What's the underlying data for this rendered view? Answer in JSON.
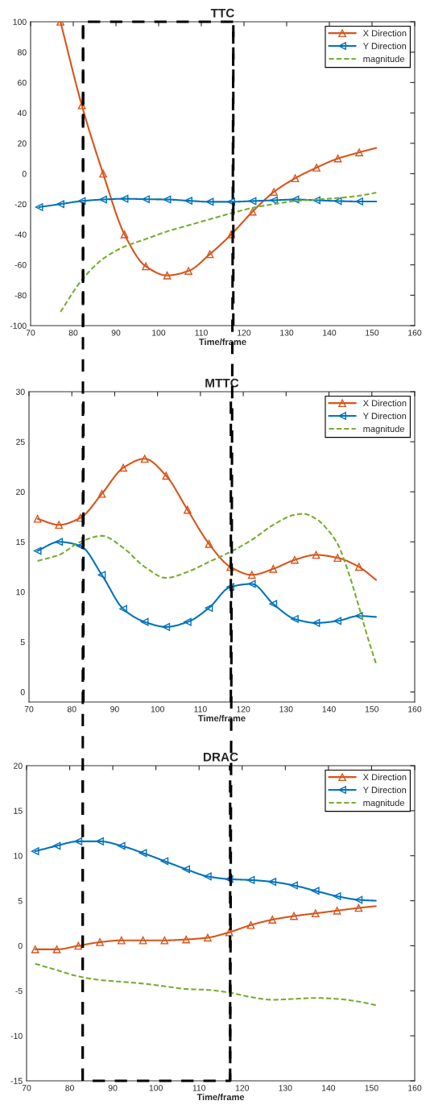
{
  "chart_data": [
    {
      "type": "line",
      "title": "TTC",
      "xlabel": "Time/frame",
      "x": [
        72,
        77,
        82,
        87,
        92,
        97,
        102,
        107,
        112,
        117,
        122,
        127,
        132,
        137,
        142,
        147,
        151
      ],
      "series": [
        {
          "name": "X Direction",
          "color": "#d95319",
          "marker": "triangle",
          "line_style": "solid",
          "values": [
            null,
            100,
            45,
            0,
            -40,
            -61,
            -67,
            -64,
            -53,
            -40,
            -25,
            -12,
            -3,
            4,
            10,
            14,
            17
          ]
        },
        {
          "name": "Y Direction",
          "color": "#0072bd",
          "marker": "triangle-left",
          "line_style": "solid",
          "values": [
            -22,
            -20,
            -18,
            -17,
            -16.5,
            -16.8,
            -17,
            -17.8,
            -18.5,
            -18.5,
            -18,
            -17.5,
            -17,
            -17.5,
            -18,
            -18.3,
            -18.3
          ]
        },
        {
          "name": "magnitude",
          "color": "#77ac30",
          "marker": "none",
          "line_style": "dashed",
          "values": [
            null,
            -91,
            -70,
            -56,
            -48,
            -43,
            -38,
            -34,
            -30,
            -26,
            -22.5,
            -20,
            -18,
            -17,
            -16,
            -14.5,
            -12.5
          ]
        }
      ],
      "xlim": [
        70,
        160
      ],
      "xticks": [
        70,
        80,
        90,
        100,
        110,
        120,
        130,
        140,
        150,
        160
      ],
      "ylim": [
        -100,
        100
      ],
      "yticks": [
        -100,
        -80,
        -60,
        -40,
        -20,
        0,
        20,
        40,
        60,
        80,
        100
      ],
      "ref_lines": [
        {
          "axis": "x",
          "value": 82.3,
          "color": "#000000",
          "line_style": "dashed"
        },
        {
          "axis": "x",
          "value": 117.5,
          "color": "#000000",
          "line_style": "dashed"
        }
      ],
      "legend": "top right",
      "grid": false
    },
    {
      "type": "line",
      "title": "MTTC",
      "xlabel": "Time/frame",
      "x": [
        72,
        77,
        82,
        87,
        92,
        97,
        102,
        107,
        112,
        117,
        122,
        127,
        132,
        137,
        142,
        147,
        151
      ],
      "series": [
        {
          "name": "X Direction",
          "color": "#d95319",
          "marker": "triangle",
          "line_style": "solid",
          "values": [
            17.3,
            16.7,
            17.4,
            19.8,
            22.4,
            23.3,
            21.6,
            18.2,
            14.8,
            12.5,
            11.7,
            12.3,
            13.2,
            13.7,
            13.4,
            12.5,
            11.2
          ]
        },
        {
          "name": "Y Direction",
          "color": "#0072bd",
          "marker": "triangle-left",
          "line_style": "solid",
          "values": [
            14.1,
            15.0,
            14.6,
            11.7,
            8.3,
            7.0,
            6.5,
            7.0,
            8.4,
            10.5,
            10.8,
            8.8,
            7.3,
            6.9,
            7.1,
            7.6,
            7.5
          ]
        },
        {
          "name": "magnitude",
          "color": "#77ac30",
          "marker": "none",
          "line_style": "dashed",
          "x": [
            72,
            77,
            82,
            87,
            92,
            97,
            102,
            107,
            112,
            117,
            122,
            127,
            132,
            134,
            137,
            139.5,
            142,
            144.5,
            147,
            149,
            151
          ],
          "values": [
            13.1,
            13.7,
            15.0,
            15.6,
            14.4,
            12.5,
            11.4,
            12.0,
            13.0,
            14.0,
            15.2,
            16.7,
            17.7,
            17.8,
            17.3,
            16.3,
            14.8,
            12.0,
            8.5,
            5.5,
            2.8
          ]
        }
      ],
      "xlim": [
        70,
        160
      ],
      "xticks": [
        70,
        80,
        90,
        100,
        110,
        120,
        130,
        140,
        150,
        160
      ],
      "ylim": [
        -1,
        30
      ],
      "yticks": [
        0,
        5,
        10,
        15,
        20,
        25,
        30
      ],
      "ref_lines": [
        {
          "axis": "x",
          "value": 82.7,
          "color": "#000000",
          "line_style": "dashed"
        },
        {
          "axis": "x",
          "value": 117.1,
          "color": "#000000",
          "line_style": "dashed"
        }
      ],
      "legend": "top right",
      "grid": false
    },
    {
      "type": "line",
      "title": "DRAC",
      "xlabel": "Time/frame",
      "x": [
        72,
        77,
        82,
        87,
        92,
        97,
        102,
        107,
        112,
        117,
        122,
        127,
        132,
        137,
        142,
        147,
        151
      ],
      "series": [
        {
          "name": "X Direction",
          "color": "#d95319",
          "marker": "triangle",
          "line_style": "solid",
          "values": [
            -0.4,
            -0.4,
            0.0,
            0.4,
            0.6,
            0.6,
            0.6,
            0.7,
            0.9,
            1.5,
            2.3,
            2.9,
            3.3,
            3.6,
            3.9,
            4.2,
            4.4
          ]
        },
        {
          "name": "Y Direction",
          "color": "#0072bd",
          "marker": "triangle-left",
          "line_style": "solid",
          "values": [
            10.5,
            11.1,
            11.6,
            11.6,
            11.1,
            10.3,
            9.4,
            8.5,
            7.7,
            7.4,
            7.3,
            7.1,
            6.7,
            6.1,
            5.5,
            5.1,
            5.0
          ]
        },
        {
          "name": "magnitude",
          "color": "#77ac30",
          "marker": "none",
          "line_style": "dashed",
          "values": [
            -2.0,
            -2.7,
            -3.4,
            -3.8,
            -4.0,
            -4.2,
            -4.5,
            -4.8,
            -4.9,
            -5.2,
            -5.7,
            -6.0,
            -5.9,
            -5.8,
            -5.9,
            -6.2,
            -6.6
          ]
        }
      ],
      "xlim": [
        70,
        160
      ],
      "xticks": [
        70,
        80,
        90,
        100,
        110,
        120,
        130,
        140,
        150,
        160
      ],
      "ylim": [
        -15,
        20
      ],
      "yticks": [
        -15,
        -10,
        -5,
        0,
        5,
        10,
        15,
        20
      ],
      "ref_lines": [
        {
          "axis": "x",
          "value": 83,
          "color": "#000000",
          "line_style": "dashed"
        },
        {
          "axis": "x",
          "value": 117.2,
          "color": "#000000",
          "line_style": "dashed"
        }
      ],
      "legend": "top right",
      "grid": false
    }
  ]
}
